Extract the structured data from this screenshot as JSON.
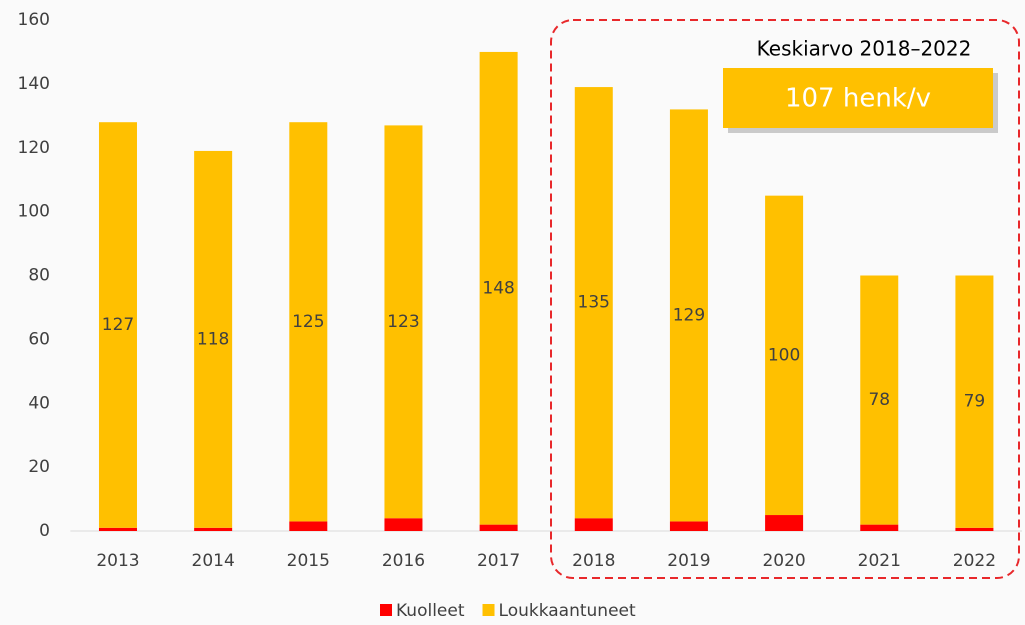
{
  "chart_data": {
    "type": "stacked_bar",
    "categories": [
      "2013",
      "2014",
      "2015",
      "2016",
      "2017",
      "2018",
      "2019",
      "2020",
      "2021",
      "2022"
    ],
    "series": [
      {
        "name": "Kuolleet",
        "color": "#ff0000",
        "values": [
          1,
          1,
          3,
          4,
          2,
          4,
          3,
          5,
          2,
          1
        ]
      },
      {
        "name": "Loukkaantuneet",
        "color": "#ffc000",
        "values": [
          127,
          118,
          125,
          123,
          148,
          135,
          129,
          100,
          78,
          79
        ]
      }
    ],
    "ylim": [
      0,
      160
    ],
    "yticks": [
      0,
      20,
      40,
      60,
      80,
      100,
      120,
      140,
      160
    ],
    "legend": "bottom",
    "annotations": {
      "title": "Keskiarvo 2018–2022",
      "value": "107 henk/v"
    }
  }
}
